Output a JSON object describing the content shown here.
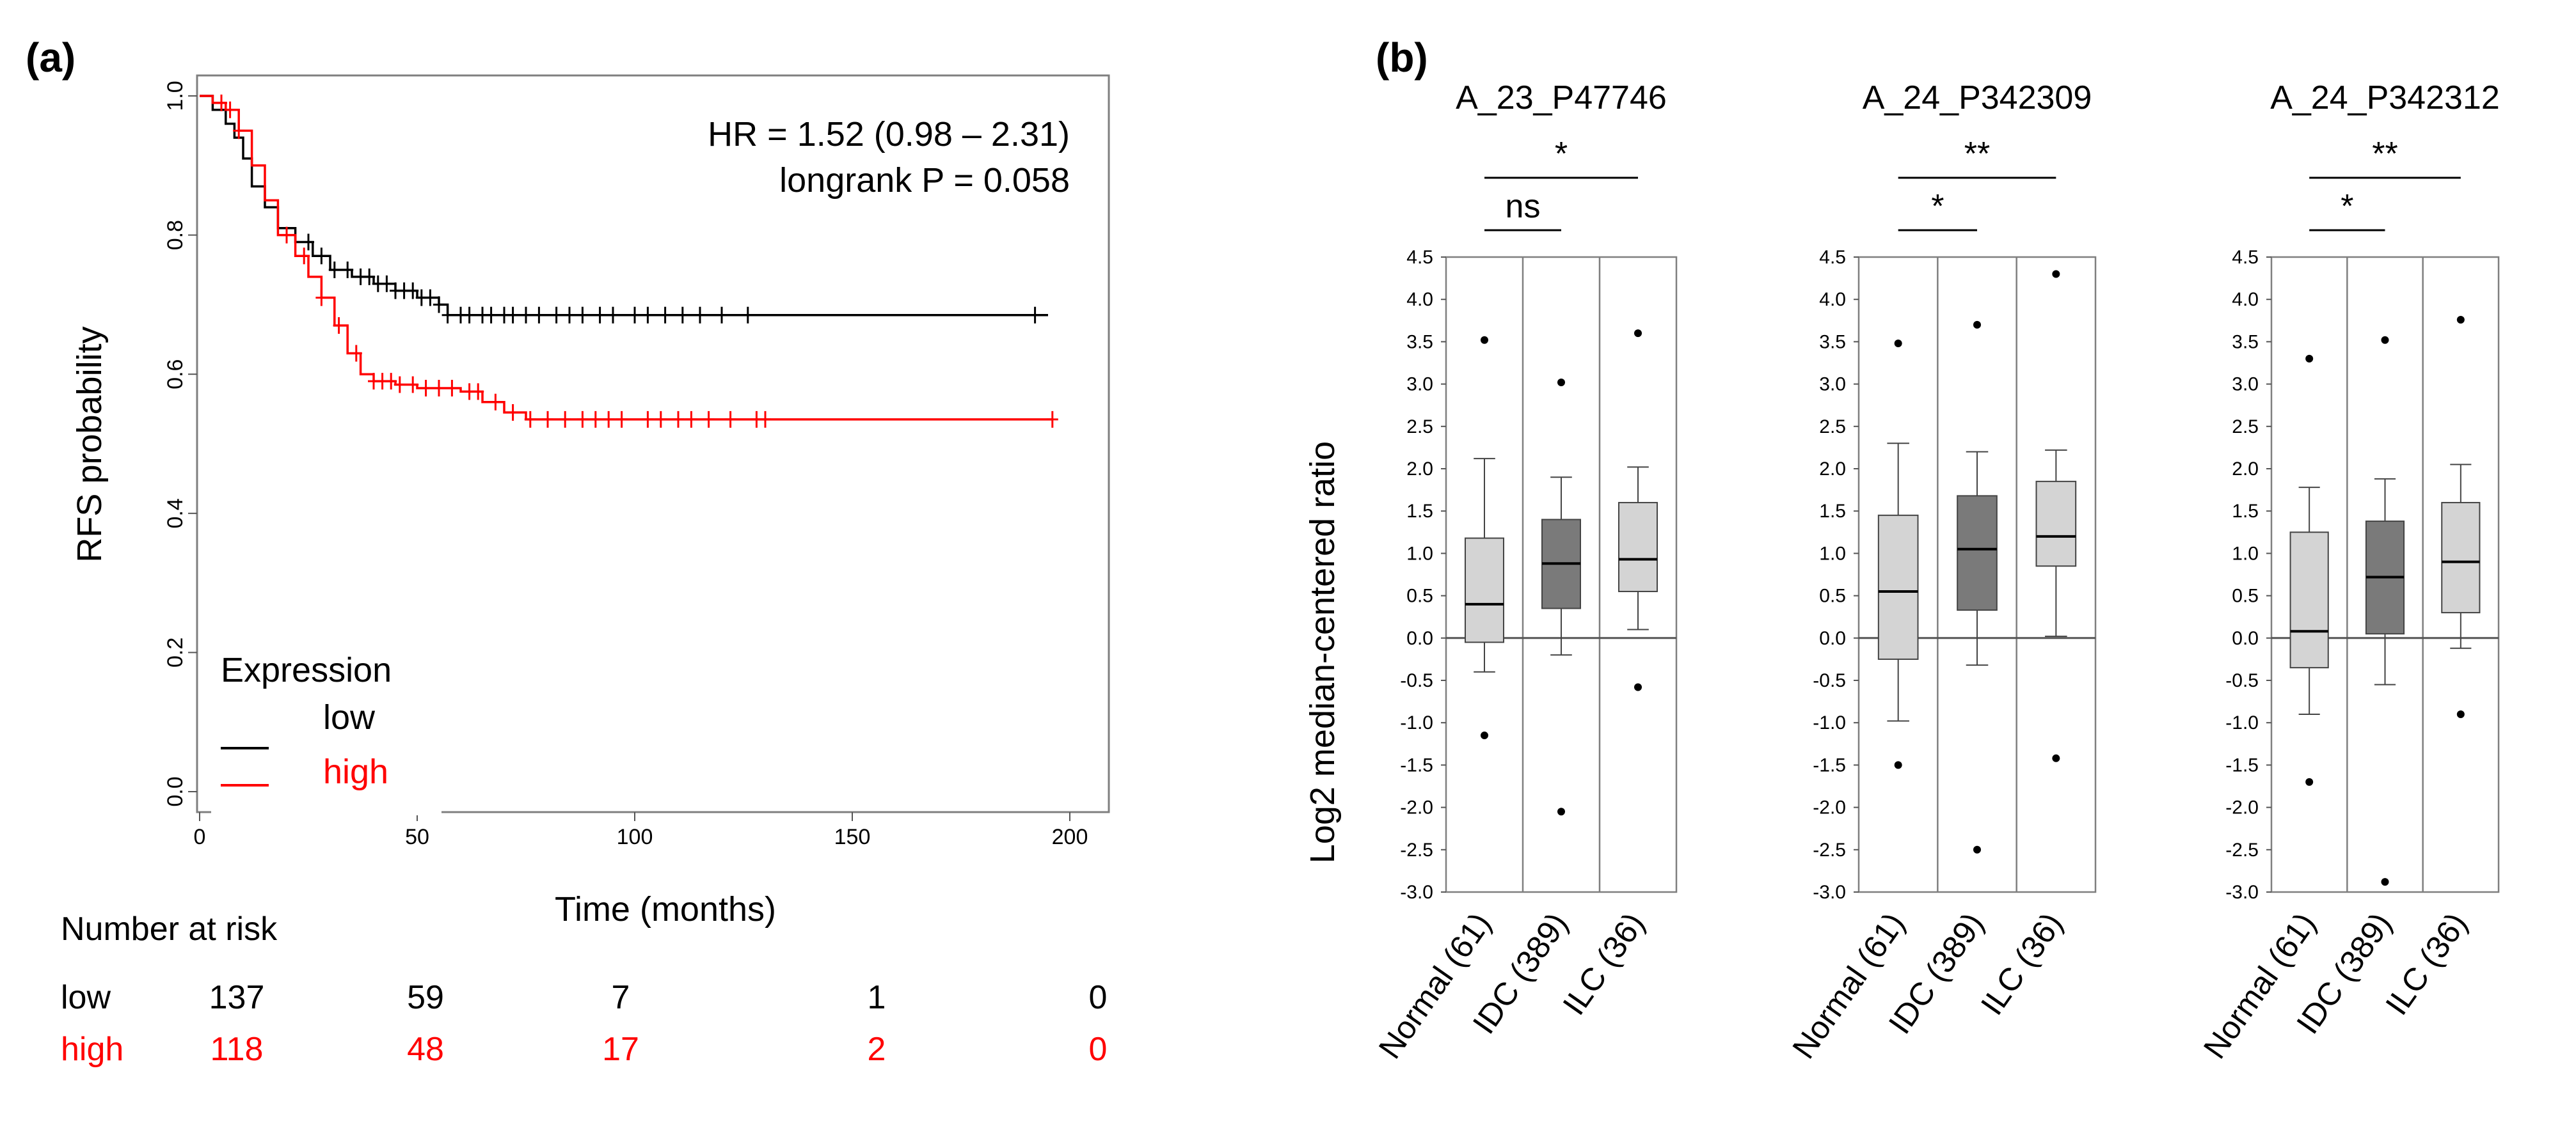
{
  "panel_labels": {
    "a": "(a)",
    "b": "(b)"
  },
  "colors": {
    "low": "#000000",
    "high": "#ff0000",
    "box_light": "#d4d4d4",
    "box_dark": "#7a7a7a",
    "frame": "#7f7f7f"
  },
  "km": {
    "ylabel": "RFS probability",
    "xlabel": "Time (months)",
    "annot_hr": "HR = 1.52 (0.98 – 2.31)",
    "annot_p": "longrank P = 0.058",
    "legend_title": "Expression",
    "legend_low": "low",
    "legend_high": "high",
    "risk_title": "Number at risk",
    "risk_low_label": "low",
    "risk_high_label": "high"
  },
  "chart_data": [
    {
      "type": "line",
      "title": "",
      "xlabel": "Time (months)",
      "ylabel": "RFS probability",
      "xlim": [
        0,
        200
      ],
      "ylim": [
        0,
        1
      ],
      "x_ticks": [
        "0",
        "50",
        "100",
        "150",
        "200"
      ],
      "y_ticks": [
        "0.0",
        "0.2",
        "0.4",
        "0.6",
        "0.8",
        "1.0"
      ],
      "grid": false,
      "legend": "bottom-left",
      "series": [
        {
          "name": "low",
          "color": "#000000",
          "x": [
            0,
            3,
            6,
            8,
            10,
            12,
            15,
            18,
            22,
            26,
            30,
            35,
            40,
            45,
            50,
            55,
            57,
            60,
            100,
            150,
            195
          ],
          "y": [
            1.0,
            0.98,
            0.96,
            0.94,
            0.91,
            0.87,
            0.84,
            0.81,
            0.79,
            0.77,
            0.75,
            0.74,
            0.73,
            0.72,
            0.71,
            0.7,
            0.685,
            0.685,
            0.685,
            0.685,
            0.685
          ],
          "censor_x": [
            25,
            28,
            31,
            34,
            37,
            39,
            41,
            43,
            45,
            47,
            49,
            51,
            53,
            55,
            57,
            60,
            62,
            65,
            67,
            70,
            72,
            75,
            78,
            82,
            85,
            88,
            92,
            95,
            100,
            103,
            107,
            111,
            115,
            120,
            126,
            192
          ]
        },
        {
          "name": "high",
          "color": "#ff0000",
          "x": [
            0,
            3,
            6,
            9,
            12,
            15,
            18,
            22,
            25,
            28,
            31,
            34,
            37,
            40,
            45,
            50,
            55,
            60,
            65,
            70,
            75,
            80,
            100,
            150,
            196
          ],
          "y": [
            1.0,
            0.99,
            0.98,
            0.95,
            0.9,
            0.85,
            0.8,
            0.77,
            0.74,
            0.71,
            0.67,
            0.63,
            0.6,
            0.59,
            0.585,
            0.58,
            0.58,
            0.575,
            0.56,
            0.545,
            0.535,
            0.535,
            0.535,
            0.535,
            0.535
          ],
          "censor_x": [
            5,
            7,
            9,
            20,
            24,
            28,
            32,
            36,
            40,
            42,
            44,
            46,
            49,
            52,
            55,
            58,
            62,
            64,
            68,
            72,
            76,
            80,
            84,
            88,
            91,
            94,
            97,
            103,
            106,
            110,
            113,
            117,
            122,
            128,
            130,
            196
          ]
        }
      ],
      "risk_table": {
        "times": [
          0,
          50,
          100,
          150,
          200
        ],
        "low": [
          "137",
          "59",
          "7",
          "1",
          "0"
        ],
        "high": [
          "118",
          "48",
          "17",
          "2",
          "0"
        ]
      }
    },
    {
      "type": "box",
      "ylabel": "Log2 median-centered ratio",
      "ylim": [
        -3.0,
        4.5
      ],
      "y_ticks": [
        "4.5",
        "4.0",
        "3.5",
        "3.0",
        "2.5",
        "2.0",
        "1.5",
        "1.0",
        "0.5",
        "0.0",
        "-0.5",
        "-1.0",
        "-1.5",
        "-2.0",
        "-2.5",
        "-3.0"
      ],
      "categories": [
        "Normal (61)",
        "IDC (389)",
        "ILC (36)"
      ],
      "panels": [
        {
          "title": "A_23_P47746",
          "sig_top": "*",
          "sig_bottom": "ns",
          "boxes": [
            {
              "q1": -0.05,
              "median": 0.4,
              "q3": 1.18,
              "whisker_low": -0.4,
              "whisker_high": 2.12,
              "out_high": 3.52,
              "out_low": -1.15,
              "shade": "light"
            },
            {
              "q1": 0.35,
              "median": 0.88,
              "q3": 1.4,
              "whisker_low": -0.2,
              "whisker_high": 1.9,
              "out_high": 3.02,
              "out_low": -2.05,
              "shade": "dark"
            },
            {
              "q1": 0.55,
              "median": 0.93,
              "q3": 1.6,
              "whisker_low": 0.1,
              "whisker_high": 2.02,
              "out_high": 3.6,
              "out_low": -0.58,
              "shade": "light"
            }
          ]
        },
        {
          "title": "A_24_P342309",
          "sig_top": "**",
          "sig_bottom": "*",
          "boxes": [
            {
              "q1": -0.25,
              "median": 0.55,
              "q3": 1.45,
              "whisker_low": -0.98,
              "whisker_high": 2.3,
              "out_high": 3.48,
              "out_low": -1.5,
              "shade": "light"
            },
            {
              "q1": 0.33,
              "median": 1.05,
              "q3": 1.68,
              "whisker_low": -0.32,
              "whisker_high": 2.2,
              "out_high": 3.7,
              "out_low": -2.5,
              "shade": "dark"
            },
            {
              "q1": 0.85,
              "median": 1.2,
              "q3": 1.85,
              "whisker_low": 0.02,
              "whisker_high": 2.22,
              "out_high": 4.3,
              "out_low": -1.42,
              "shade": "light"
            }
          ]
        },
        {
          "title": "A_24_P342312",
          "sig_top": "**",
          "sig_bottom": "*",
          "boxes": [
            {
              "q1": -0.35,
              "median": 0.08,
              "q3": 1.25,
              "whisker_low": -0.9,
              "whisker_high": 1.78,
              "out_high": 3.3,
              "out_low": -1.7,
              "shade": "light"
            },
            {
              "q1": 0.05,
              "median": 0.72,
              "q3": 1.38,
              "whisker_low": -0.55,
              "whisker_high": 1.88,
              "out_high": 3.52,
              "out_low": -2.88,
              "shade": "dark"
            },
            {
              "q1": 0.3,
              "median": 0.9,
              "q3": 1.6,
              "whisker_low": -0.12,
              "whisker_high": 2.05,
              "out_high": 3.76,
              "out_low": -0.9,
              "shade": "light"
            }
          ]
        }
      ]
    }
  ]
}
